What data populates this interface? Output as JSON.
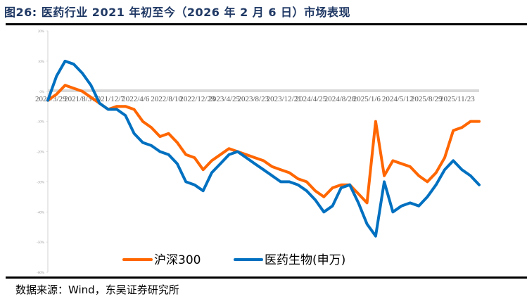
{
  "title": "图26:  医药行业 2021 年初至今（2026 年 2 月 6 日）市场表现",
  "source": "数据来源：Wind，东吴证券研究所",
  "chart_data": {
    "type": "line",
    "title": "医药行业 2021 年初至今（2026 年 2 月 6 日）市场表现",
    "xlabel": "",
    "ylabel": "",
    "ylim": [
      -60,
      20
    ],
    "yticks": [
      20,
      10,
      0,
      -10,
      -20,
      -30,
      -40,
      -50,
      -60
    ],
    "ytick_labels": [
      "20%",
      "10%",
      "0%",
      "-10%",
      "-20%",
      "-30%",
      "-40%",
      "-50%",
      "-60%"
    ],
    "xtick_labels": [
      "2021/3/29",
      "2021/8/3",
      "2021/12/7",
      "2022/4/6",
      "2022/8/10",
      "2022/12/23",
      "2023/4/25",
      "2023/8/23",
      "2023/12/21",
      "2024/4/25",
      "2024/8/28",
      "2025/1/6",
      "2024/5/12",
      "2025/8/29",
      "2025/11/23"
    ],
    "grid": false,
    "legend_position": "bottom",
    "x_index": [
      0,
      2,
      4,
      6,
      8,
      10,
      12,
      14,
      16,
      18,
      20,
      22,
      24,
      26,
      28,
      30,
      32,
      34,
      36,
      38,
      40,
      42,
      44,
      46,
      48,
      50,
      52,
      54,
      56,
      58,
      60,
      62,
      64,
      66,
      68,
      70,
      72,
      74,
      76,
      78,
      80,
      82,
      84,
      86,
      88,
      90,
      92,
      94,
      96,
      98,
      100
    ],
    "series": [
      {
        "name": "沪深300",
        "color": "#ff6600",
        "values": [
          -3,
          -1,
          2,
          1,
          0,
          -2,
          -4,
          -6,
          -5,
          -5,
          -6,
          -10,
          -12,
          -15,
          -14,
          -17,
          -21,
          -22,
          -26,
          -23,
          -21,
          -19,
          -20,
          -21,
          -22,
          -23,
          -25,
          -26,
          -27,
          -29,
          -30,
          -33,
          -35,
          -32,
          -31,
          -31,
          -34,
          -37,
          -10,
          -28,
          -23,
          -24,
          -25,
          -28,
          -30,
          -27,
          -22,
          -13,
          -12,
          -10,
          -10
        ]
      },
      {
        "name": "医药生物(申万)",
        "color": "#0070c0",
        "values": [
          -3,
          5,
          10,
          9,
          6,
          2,
          -4,
          -6,
          -6,
          -8,
          -14,
          -17,
          -18,
          -20,
          -21,
          -24,
          -30,
          -31,
          -33,
          -27,
          -24,
          -21,
          -20,
          -22,
          -24,
          -26,
          -28,
          -30,
          -30,
          -31,
          -33,
          -36,
          -40,
          -38,
          -32,
          -31,
          -37,
          -44,
          -48,
          -30,
          -40,
          -38,
          -37,
          -38,
          -35,
          -31,
          -26,
          -23,
          -26,
          -28,
          -31
        ]
      }
    ]
  }
}
